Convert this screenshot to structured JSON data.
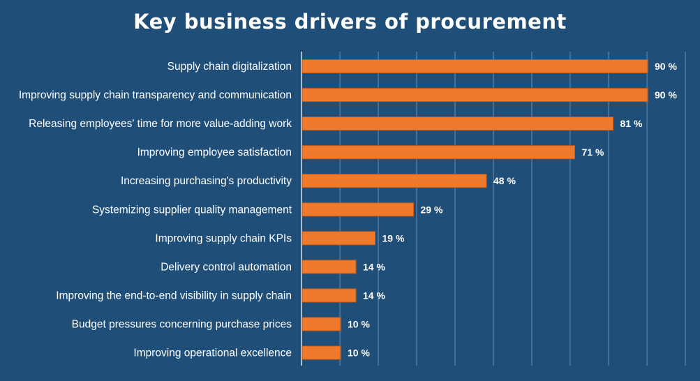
{
  "chart_data": {
    "type": "bar",
    "orientation": "horizontal",
    "title": "Key business drivers of procurement",
    "categories": [
      "Supply chain digitalization",
      "Improving supply chain transparency and communication",
      "Releasing employees' time for more value-adding work",
      "Improving employee satisfaction",
      "Increasing purchasing's productivity",
      "Systemizing supplier quality management",
      "Improving supply chain KPIs",
      "Delivery control automation",
      "Improving the end-to-end visibility in supply chain",
      "Budget pressures concerning purchase prices",
      "Improving operational excellence"
    ],
    "values": [
      90,
      90,
      81,
      71,
      48,
      29,
      19,
      14,
      14,
      10,
      10
    ],
    "value_labels": [
      "90 %",
      "90 %",
      "81 %",
      "71 %",
      "48 %",
      "29 %",
      "19 %",
      "14 %",
      "14 %",
      "10 %",
      "10 %"
    ],
    "xlim": [
      0,
      100
    ],
    "grid": true,
    "legend": "none",
    "colors": {
      "background": "#1f4e79",
      "bar": "#f07a2c",
      "bar_edge": "#c85a14",
      "text": "#ffffff",
      "grid": "#6f8fb0"
    }
  }
}
